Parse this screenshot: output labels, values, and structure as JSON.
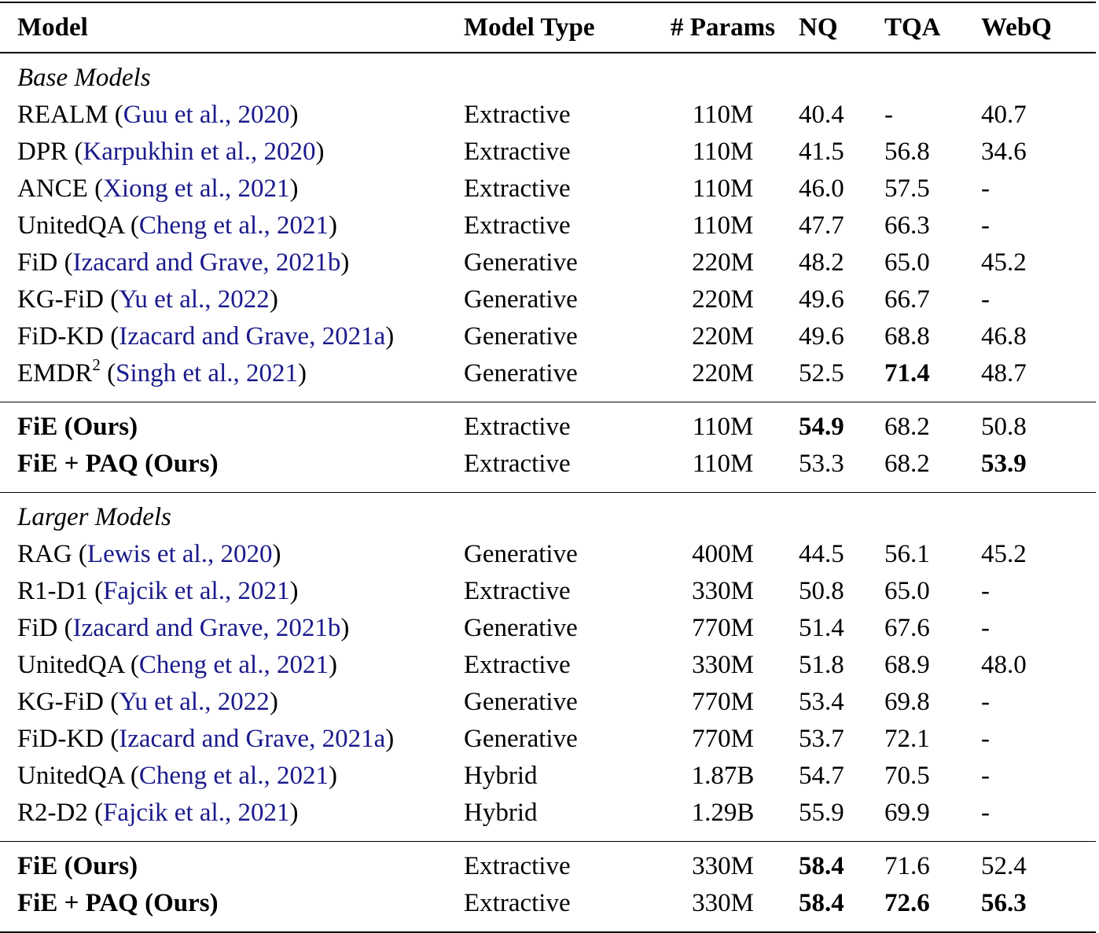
{
  "table": {
    "header": [
      "Model",
      "Model Type",
      "# Params",
      "NQ",
      "TQA",
      "WebQ"
    ],
    "sections": [
      {
        "title": "Base Models",
        "rows": [
          {
            "model": [
              {
                "text": "REALM ("
              },
              {
                "text": "Guu et al., 2020",
                "link": true
              },
              {
                "text": ")"
              }
            ],
            "cells": [
              "Extractive",
              "110M",
              "40.4",
              "-",
              "40.7"
            ]
          },
          {
            "model": [
              {
                "text": "DPR ("
              },
              {
                "text": "Karpukhin et al., 2020",
                "link": true
              },
              {
                "text": ")"
              }
            ],
            "cells": [
              "Extractive",
              "110M",
              "41.5",
              "56.8",
              "34.6"
            ]
          },
          {
            "model": [
              {
                "text": "ANCE ("
              },
              {
                "text": "Xiong et al., 2021",
                "link": true
              },
              {
                "text": ")"
              }
            ],
            "cells": [
              "Extractive",
              "110M",
              "46.0",
              "57.5",
              "-"
            ]
          },
          {
            "model": [
              {
                "text": "UnitedQA ("
              },
              {
                "text": "Cheng et al., 2021",
                "link": true
              },
              {
                "text": ")"
              }
            ],
            "cells": [
              "Extractive",
              "110M",
              "47.7",
              "66.3",
              "-"
            ]
          },
          {
            "model": [
              {
                "text": "FiD ("
              },
              {
                "text": "Izacard and Grave, 2021b",
                "link": true
              },
              {
                "text": ")"
              }
            ],
            "cells": [
              "Generative",
              "220M",
              "48.2",
              "65.0",
              "45.2"
            ]
          },
          {
            "model": [
              {
                "text": "KG-FiD ("
              },
              {
                "text": "Yu et al., 2022",
                "link": true
              },
              {
                "text": ")"
              }
            ],
            "cells": [
              "Generative",
              "220M",
              "49.6",
              "66.7",
              "-"
            ]
          },
          {
            "model": [
              {
                "text": "FiD-KD ("
              },
              {
                "text": "Izacard and Grave, 2021a",
                "link": true
              },
              {
                "text": ")"
              }
            ],
            "cells": [
              "Generative",
              "220M",
              "49.6",
              "68.8",
              "46.8"
            ]
          },
          {
            "model": [
              {
                "text": "EMDR"
              },
              {
                "text": "2",
                "sup": true
              },
              {
                "text": " ("
              },
              {
                "text": "Singh et al., 2021",
                "link": true
              },
              {
                "text": ")"
              }
            ],
            "cells": [
              "Generative",
              "220M",
              "52.5",
              {
                "text": "71.4",
                "bold": true
              },
              "48.7"
            ]
          }
        ]
      },
      {
        "rows": [
          {
            "model": [
              {
                "text": "FiE (Ours)",
                "bold": true
              }
            ],
            "cells": [
              "Extractive",
              "110M",
              {
                "text": "54.9",
                "bold": true
              },
              "68.2",
              "50.8"
            ]
          },
          {
            "model": [
              {
                "text": "FiE + PAQ (Ours)",
                "bold": true
              }
            ],
            "cells": [
              "Extractive",
              "110M",
              "53.3",
              "68.2",
              {
                "text": "53.9",
                "bold": true
              }
            ]
          }
        ]
      },
      {
        "title": "Larger Models",
        "rows": [
          {
            "model": [
              {
                "text": "RAG ("
              },
              {
                "text": "Lewis et al., 2020",
                "link": true
              },
              {
                "text": ")"
              }
            ],
            "cells": [
              "Generative",
              "400M",
              "44.5",
              "56.1",
              "45.2"
            ]
          },
          {
            "model": [
              {
                "text": "R1-D1 ("
              },
              {
                "text": "Fajcik et al., 2021",
                "link": true
              },
              {
                "text": ")"
              }
            ],
            "cells": [
              "Extractive",
              "330M",
              "50.8",
              "65.0",
              "-"
            ]
          },
          {
            "model": [
              {
                "text": "FiD ("
              },
              {
                "text": "Izacard and Grave, 2021b",
                "link": true
              },
              {
                "text": ")"
              }
            ],
            "cells": [
              "Generative",
              "770M",
              "51.4",
              "67.6",
              "-"
            ]
          },
          {
            "model": [
              {
                "text": "UnitedQA ("
              },
              {
                "text": "Cheng et al., 2021",
                "link": true
              },
              {
                "text": ")"
              }
            ],
            "cells": [
              "Extractive",
              "330M",
              "51.8",
              "68.9",
              "48.0"
            ]
          },
          {
            "model": [
              {
                "text": "KG-FiD ("
              },
              {
                "text": "Yu et al., 2022",
                "link": true
              },
              {
                "text": ")"
              }
            ],
            "cells": [
              "Generative",
              "770M",
              "53.4",
              "69.8",
              "-"
            ]
          },
          {
            "model": [
              {
                "text": "FiD-KD ("
              },
              {
                "text": "Izacard and Grave, 2021a",
                "link": true
              },
              {
                "text": ")"
              }
            ],
            "cells": [
              "Generative",
              "770M",
              "53.7",
              "72.1",
              "-"
            ]
          },
          {
            "model": [
              {
                "text": "UnitedQA ("
              },
              {
                "text": "Cheng et al., 2021",
                "link": true
              },
              {
                "text": ")"
              }
            ],
            "cells": [
              "Hybrid",
              "1.87B",
              "54.7",
              "70.5",
              "-"
            ]
          },
          {
            "model": [
              {
                "text": "R2-D2 ("
              },
              {
                "text": "Fajcik et al., 2021",
                "link": true
              },
              {
                "text": ")"
              }
            ],
            "cells": [
              "Hybrid",
              "1.29B",
              "55.9",
              "69.9",
              "-"
            ]
          }
        ]
      },
      {
        "rows": [
          {
            "model": [
              {
                "text": "FiE (Ours)",
                "bold": true
              }
            ],
            "cells": [
              "Extractive",
              "330M",
              {
                "text": "58.4",
                "bold": true
              },
              "71.6",
              "52.4"
            ]
          },
          {
            "model": [
              {
                "text": "FiE + PAQ (Ours)",
                "bold": true
              }
            ],
            "cells": [
              "Extractive",
              "330M",
              {
                "text": "58.4",
                "bold": true
              },
              {
                "text": "72.6",
                "bold": true
              },
              {
                "text": "56.3",
                "bold": true
              }
            ]
          }
        ]
      }
    ]
  }
}
